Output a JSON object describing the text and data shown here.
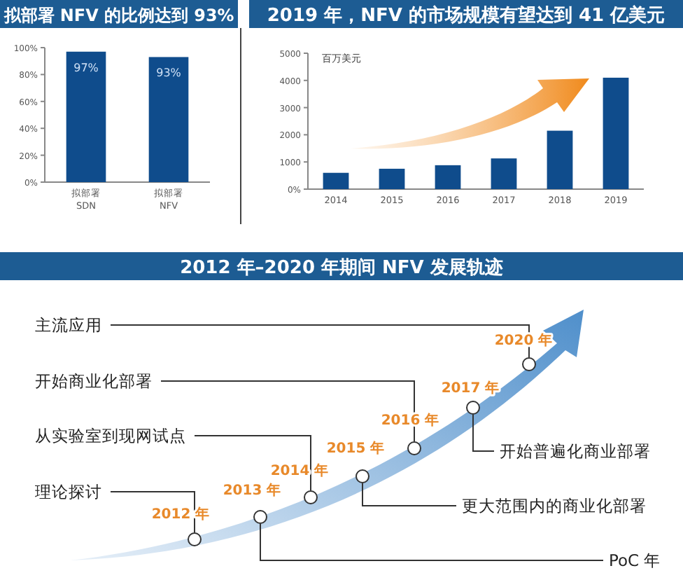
{
  "chart_data": [
    {
      "type": "bar",
      "title": "拟部署 NFV 的比例达到 93%",
      "categories": [
        "拟部署\nSDN",
        "拟部署\nNFV"
      ],
      "values": [
        97,
        93
      ],
      "color": "#0f4c8c",
      "value_labels": [
        "97%",
        "93%"
      ],
      "ylim": [
        0,
        100
      ],
      "yticks": [
        {
          "value": 0,
          "label": "0%"
        },
        {
          "value": 20,
          "label": "20%"
        },
        {
          "value": 40,
          "label": "40%"
        },
        {
          "value": 60,
          "label": "60%"
        },
        {
          "value": 80,
          "label": "80%"
        },
        {
          "value": 100,
          "label": "100%"
        }
      ],
      "grid": false
    },
    {
      "type": "bar",
      "title": "2019 年，NFV 的市场规模有望达到 41 亿美元",
      "ylabel": "百万美元",
      "categories": [
        "2014",
        "2015",
        "2016",
        "2017",
        "2018",
        "2019"
      ],
      "values": [
        600,
        750,
        880,
        1130,
        2150,
        4100
      ],
      "color": "#0f4c8c",
      "ylim": [
        0,
        5000
      ],
      "yticks": [
        {
          "value": 0,
          "label": "0%"
        },
        1000,
        2000,
        3000,
        4000,
        5000
      ],
      "grid": false
    },
    {
      "type": "other",
      "title": "2012 年–2020 年期间 NFV 发展轨迹",
      "annotations": [
        "2012 年",
        "2013 年",
        "2014 年",
        "2015 年",
        "2016 年",
        "2017 年",
        "2020 年",
        "理论探讨",
        "PoC 年",
        "从实验室到现网试点",
        "更大范围内的商业化部署",
        "开始商业化部署",
        "开始普遍化商业部署",
        "主流应用"
      ]
    }
  ]
}
